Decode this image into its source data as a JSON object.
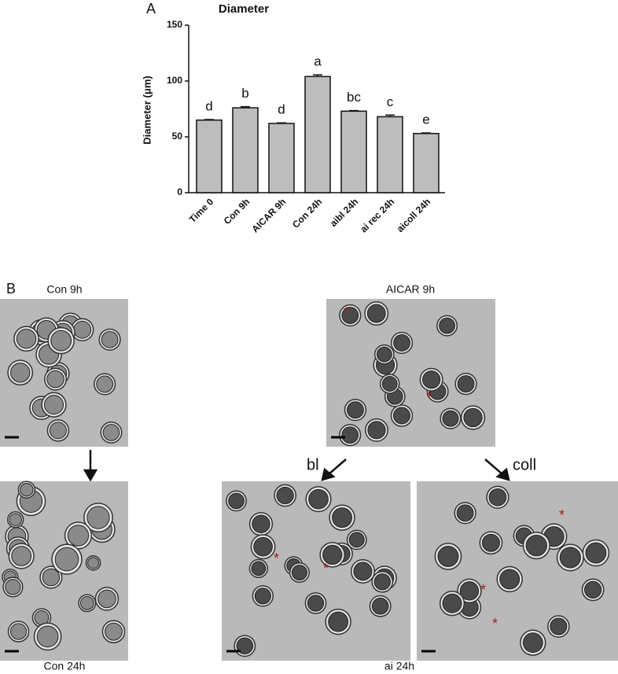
{
  "panel_a_label": "A",
  "chart_data": {
    "type": "bar",
    "title": "Diameter",
    "y_label": "Diameter (μm)",
    "categories": [
      "Time 0",
      "Con 9h",
      "AICAR 9h",
      "Con 24h",
      "aibl 24h",
      "ai rec 24h",
      "aicoll 24h"
    ],
    "values": [
      65,
      76,
      62,
      104,
      73,
      68,
      53
    ],
    "errors": [
      0.5,
      1,
      0.5,
      1.5,
      0.5,
      1.5,
      0.5
    ],
    "annotations": [
      "d",
      "b",
      "d",
      "a",
      "bc",
      "c",
      "e"
    ],
    "color": "#bdbdbd",
    "ylim": [
      0,
      150
    ],
    "yticks": [
      0,
      50,
      100,
      150
    ]
  },
  "panel_b": {
    "label": "B",
    "con_9h": "Con 9h",
    "aicar_9h": "AICAR 9h",
    "bl": "bl",
    "coll": "coll",
    "con_24h": "Con 24h",
    "ai_24h": "ai 24h",
    "asterisk": "*"
  }
}
